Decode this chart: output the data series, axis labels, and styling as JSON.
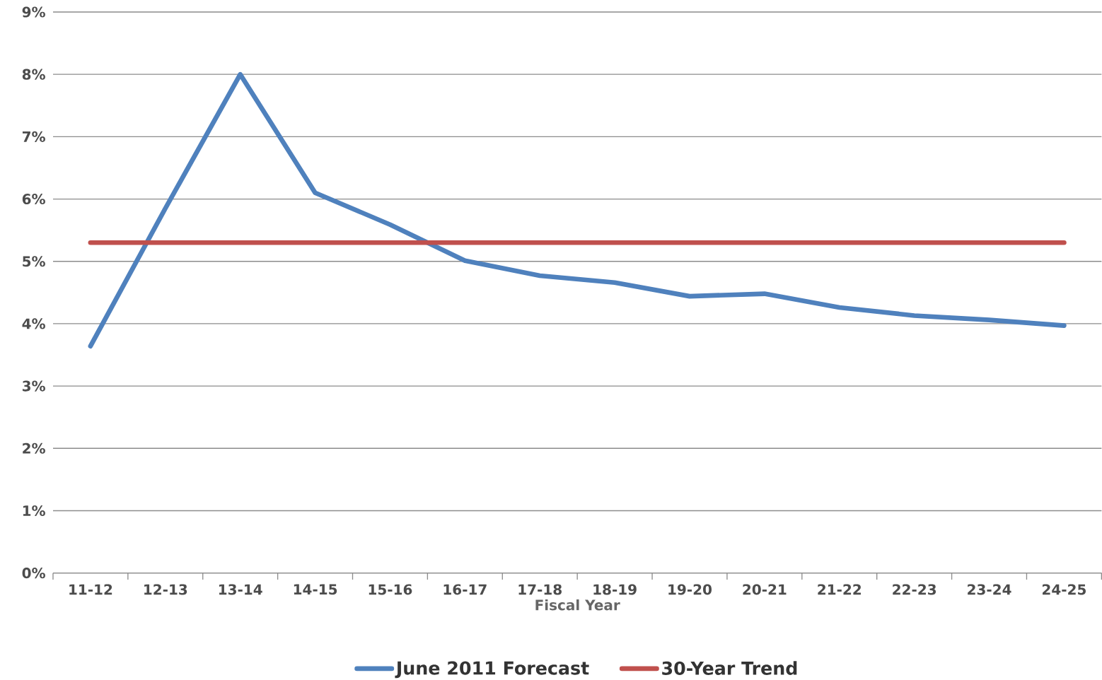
{
  "chart_data": {
    "type": "line",
    "xlabel": "Fiscal Year",
    "categories": [
      "11-12",
      "12-13",
      "13-14",
      "14-15",
      "15-16",
      "16-17",
      "17-18",
      "18-19",
      "19-20",
      "20-21",
      "21-22",
      "22-23",
      "23-24",
      "24-25"
    ],
    "series": [
      {
        "name": "June 2011 Forecast",
        "color": "#4f81bd",
        "values": [
          3.64,
          5.85,
          8.0,
          6.1,
          5.59,
          5.01,
          4.77,
          4.66,
          4.44,
          4.48,
          4.26,
          4.13,
          4.06,
          3.97
        ]
      },
      {
        "name": "30-Year Trend",
        "color": "#c0504d",
        "values": [
          5.3,
          5.3,
          5.3,
          5.3,
          5.3,
          5.3,
          5.3,
          5.3,
          5.3,
          5.3,
          5.3,
          5.3,
          5.3,
          5.3
        ]
      }
    ],
    "ylim": [
      0,
      9
    ],
    "yticks": [
      {
        "value": 0,
        "label": "0%"
      },
      {
        "value": 1,
        "label": "1%"
      },
      {
        "value": 2,
        "label": "2%"
      },
      {
        "value": 3,
        "label": "3%"
      },
      {
        "value": 4,
        "label": "4%"
      },
      {
        "value": 5,
        "label": "5%"
      },
      {
        "value": 6,
        "label": "6%"
      },
      {
        "value": 7,
        "label": "7%"
      },
      {
        "value": 8,
        "label": "8%"
      },
      {
        "value": 9,
        "label": "9%"
      }
    ],
    "grid": "y",
    "legend": "bottom",
    "marker": "none",
    "line_style": "solid"
  }
}
